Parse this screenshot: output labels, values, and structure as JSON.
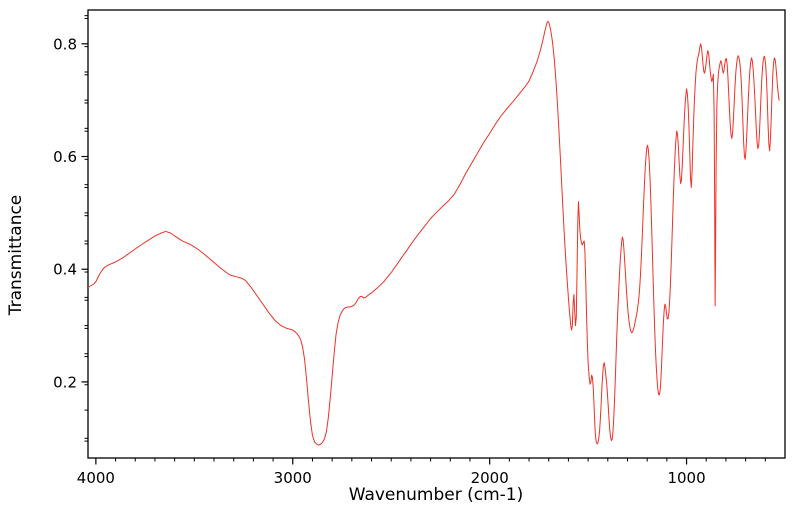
{
  "figure": {
    "background": "#ffffff",
    "axis_color": "#000000"
  },
  "chart_data": {
    "type": "line",
    "title": "",
    "xlabel": "Wavenumber (cm-1)",
    "ylabel": "Transmittance",
    "legend": null,
    "grid": false,
    "line_color": "#f03128",
    "line_width": 1,
    "xlim": [
      4040,
      500
    ],
    "ylim": [
      0.065,
      0.86
    ],
    "x_axis_reversed": true,
    "x_ticks_major": [
      4000,
      3000,
      2000,
      1000
    ],
    "x_tick_labels": [
      "4000",
      "3000",
      "2000",
      "1000"
    ],
    "x_minor_step": 100,
    "y_ticks_major": [
      0.2,
      0.4,
      0.6,
      0.8
    ],
    "y_tick_labels": [
      "0.2",
      "0.4",
      "0.6",
      "0.8"
    ],
    "y_minor_step": 0.05,
    "points": [
      [
        4038,
        0.368
      ],
      [
        4010,
        0.374
      ],
      [
        4000,
        0.378
      ],
      [
        3980,
        0.392
      ],
      [
        3960,
        0.402
      ],
      [
        3940,
        0.407
      ],
      [
        3900,
        0.413
      ],
      [
        3860,
        0.421
      ],
      [
        3820,
        0.431
      ],
      [
        3780,
        0.441
      ],
      [
        3740,
        0.45
      ],
      [
        3700,
        0.459
      ],
      [
        3670,
        0.464
      ],
      [
        3645,
        0.467
      ],
      [
        3620,
        0.464
      ],
      [
        3600,
        0.459
      ],
      [
        3560,
        0.45
      ],
      [
        3520,
        0.444
      ],
      [
        3480,
        0.435
      ],
      [
        3440,
        0.424
      ],
      [
        3400,
        0.412
      ],
      [
        3360,
        0.4
      ],
      [
        3320,
        0.39
      ],
      [
        3290,
        0.387
      ],
      [
        3260,
        0.384
      ],
      [
        3240,
        0.38
      ],
      [
        3210,
        0.367
      ],
      [
        3180,
        0.352
      ],
      [
        3150,
        0.337
      ],
      [
        3120,
        0.322
      ],
      [
        3090,
        0.309
      ],
      [
        3060,
        0.3
      ],
      [
        3030,
        0.295
      ],
      [
        3000,
        0.292
      ],
      [
        2985,
        0.288
      ],
      [
        2970,
        0.282
      ],
      [
        2960,
        0.275
      ],
      [
        2950,
        0.262
      ],
      [
        2940,
        0.24
      ],
      [
        2930,
        0.205
      ],
      [
        2920,
        0.165
      ],
      [
        2910,
        0.13
      ],
      [
        2900,
        0.105
      ],
      [
        2890,
        0.094
      ],
      [
        2880,
        0.09
      ],
      [
        2870,
        0.088
      ],
      [
        2860,
        0.089
      ],
      [
        2850,
        0.092
      ],
      [
        2840,
        0.098
      ],
      [
        2830,
        0.11
      ],
      [
        2820,
        0.135
      ],
      [
        2810,
        0.17
      ],
      [
        2800,
        0.21
      ],
      [
        2790,
        0.25
      ],
      [
        2780,
        0.285
      ],
      [
        2770,
        0.305
      ],
      [
        2760,
        0.318
      ],
      [
        2750,
        0.325
      ],
      [
        2740,
        0.33
      ],
      [
        2730,
        0.332
      ],
      [
        2720,
        0.333
      ],
      [
        2710,
        0.333
      ],
      [
        2700,
        0.334
      ],
      [
        2690,
        0.336
      ],
      [
        2680,
        0.34
      ],
      [
        2670,
        0.346
      ],
      [
        2660,
        0.351
      ],
      [
        2650,
        0.352
      ],
      [
        2640,
        0.349
      ],
      [
        2630,
        0.35
      ],
      [
        2620,
        0.353
      ],
      [
        2610,
        0.356
      ],
      [
        2600,
        0.358
      ],
      [
        2570,
        0.367
      ],
      [
        2540,
        0.377
      ],
      [
        2500,
        0.394
      ],
      [
        2460,
        0.414
      ],
      [
        2420,
        0.434
      ],
      [
        2380,
        0.454
      ],
      [
        2340,
        0.472
      ],
      [
        2300,
        0.49
      ],
      [
        2270,
        0.501
      ],
      [
        2240,
        0.511
      ],
      [
        2210,
        0.521
      ],
      [
        2180,
        0.533
      ],
      [
        2150,
        0.551
      ],
      [
        2120,
        0.571
      ],
      [
        2090,
        0.589
      ],
      [
        2060,
        0.607
      ],
      [
        2030,
        0.625
      ],
      [
        2000,
        0.641
      ],
      [
        1970,
        0.658
      ],
      [
        1940,
        0.673
      ],
      [
        1910,
        0.686
      ],
      [
        1880,
        0.698
      ],
      [
        1850,
        0.711
      ],
      [
        1820,
        0.724
      ],
      [
        1800,
        0.734
      ],
      [
        1780,
        0.75
      ],
      [
        1760,
        0.768
      ],
      [
        1745,
        0.785
      ],
      [
        1730,
        0.806
      ],
      [
        1718,
        0.825
      ],
      [
        1708,
        0.838
      ],
      [
        1704,
        0.84
      ],
      [
        1700,
        0.838
      ],
      [
        1694,
        0.831
      ],
      [
        1688,
        0.82
      ],
      [
        1682,
        0.806
      ],
      [
        1676,
        0.788
      ],
      [
        1670,
        0.765
      ],
      [
        1662,
        0.728
      ],
      [
        1654,
        0.683
      ],
      [
        1646,
        0.632
      ],
      [
        1638,
        0.578
      ],
      [
        1630,
        0.522
      ],
      [
        1622,
        0.468
      ],
      [
        1614,
        0.42
      ],
      [
        1606,
        0.378
      ],
      [
        1600,
        0.349
      ],
      [
        1594,
        0.322
      ],
      [
        1588,
        0.3
      ],
      [
        1584,
        0.292
      ],
      [
        1580,
        0.3
      ],
      [
        1576,
        0.34
      ],
      [
        1572,
        0.355
      ],
      [
        1568,
        0.325
      ],
      [
        1564,
        0.3
      ],
      [
        1560,
        0.315
      ],
      [
        1556,
        0.4
      ],
      [
        1552,
        0.49
      ],
      [
        1549,
        0.52
      ],
      [
        1546,
        0.5
      ],
      [
        1542,
        0.47
      ],
      [
        1538,
        0.455
      ],
      [
        1534,
        0.447
      ],
      [
        1530,
        0.443
      ],
      [
        1525,
        0.447
      ],
      [
        1520,
        0.45
      ],
      [
        1516,
        0.43
      ],
      [
        1512,
        0.38
      ],
      [
        1508,
        0.32
      ],
      [
        1504,
        0.27
      ],
      [
        1500,
        0.235
      ],
      [
        1495,
        0.21
      ],
      [
        1490,
        0.196
      ],
      [
        1486,
        0.2
      ],
      [
        1482,
        0.212
      ],
      [
        1478,
        0.208
      ],
      [
        1474,
        0.19
      ],
      [
        1470,
        0.16
      ],
      [
        1466,
        0.125
      ],
      [
        1462,
        0.102
      ],
      [
        1458,
        0.093
      ],
      [
        1454,
        0.09
      ],
      [
        1450,
        0.092
      ],
      [
        1446,
        0.1
      ],
      [
        1442,
        0.112
      ],
      [
        1438,
        0.133
      ],
      [
        1434,
        0.16
      ],
      [
        1430,
        0.19
      ],
      [
        1426,
        0.213
      ],
      [
        1422,
        0.23
      ],
      [
        1418,
        0.234
      ],
      [
        1414,
        0.225
      ],
      [
        1410,
        0.212
      ],
      [
        1406,
        0.198
      ],
      [
        1402,
        0.18
      ],
      [
        1398,
        0.158
      ],
      [
        1394,
        0.135
      ],
      [
        1390,
        0.115
      ],
      [
        1386,
        0.102
      ],
      [
        1382,
        0.096
      ],
      [
        1378,
        0.098
      ],
      [
        1374,
        0.11
      ],
      [
        1370,
        0.133
      ],
      [
        1366,
        0.165
      ],
      [
        1362,
        0.203
      ],
      [
        1358,
        0.245
      ],
      [
        1354,
        0.285
      ],
      [
        1350,
        0.32
      ],
      [
        1346,
        0.352
      ],
      [
        1342,
        0.382
      ],
      [
        1338,
        0.408
      ],
      [
        1334,
        0.43
      ],
      [
        1330,
        0.447
      ],
      [
        1326,
        0.457
      ],
      [
        1322,
        0.452
      ],
      [
        1318,
        0.435
      ],
      [
        1314,
        0.413
      ],
      [
        1310,
        0.39
      ],
      [
        1306,
        0.367
      ],
      [
        1302,
        0.346
      ],
      [
        1298,
        0.328
      ],
      [
        1294,
        0.313
      ],
      [
        1290,
        0.302
      ],
      [
        1286,
        0.294
      ],
      [
        1282,
        0.289
      ],
      [
        1278,
        0.287
      ],
      [
        1274,
        0.289
      ],
      [
        1270,
        0.293
      ],
      [
        1266,
        0.298
      ],
      [
        1262,
        0.305
      ],
      [
        1258,
        0.312
      ],
      [
        1254,
        0.319
      ],
      [
        1250,
        0.327
      ],
      [
        1246,
        0.337
      ],
      [
        1242,
        0.35
      ],
      [
        1238,
        0.367
      ],
      [
        1234,
        0.39
      ],
      [
        1230,
        0.418
      ],
      [
        1226,
        0.45
      ],
      [
        1222,
        0.484
      ],
      [
        1218,
        0.518
      ],
      [
        1214,
        0.55
      ],
      [
        1210,
        0.578
      ],
      [
        1206,
        0.6
      ],
      [
        1202,
        0.615
      ],
      [
        1198,
        0.62
      ],
      [
        1194,
        0.612
      ],
      [
        1190,
        0.594
      ],
      [
        1186,
        0.565
      ],
      [
        1182,
        0.527
      ],
      [
        1178,
        0.483
      ],
      [
        1174,
        0.435
      ],
      [
        1170,
        0.386
      ],
      [
        1166,
        0.338
      ],
      [
        1162,
        0.295
      ],
      [
        1158,
        0.258
      ],
      [
        1154,
        0.228
      ],
      [
        1150,
        0.205
      ],
      [
        1146,
        0.188
      ],
      [
        1142,
        0.178
      ],
      [
        1138,
        0.177
      ],
      [
        1134,
        0.186
      ],
      [
        1130,
        0.206
      ],
      [
        1126,
        0.237
      ],
      [
        1122,
        0.272
      ],
      [
        1118,
        0.303
      ],
      [
        1114,
        0.326
      ],
      [
        1110,
        0.338
      ],
      [
        1106,
        0.335
      ],
      [
        1102,
        0.322
      ],
      [
        1098,
        0.312
      ],
      [
        1094,
        0.312
      ],
      [
        1090,
        0.322
      ],
      [
        1086,
        0.342
      ],
      [
        1082,
        0.372
      ],
      [
        1078,
        0.41
      ],
      [
        1074,
        0.452
      ],
      [
        1070,
        0.496
      ],
      [
        1066,
        0.538
      ],
      [
        1062,
        0.576
      ],
      [
        1058,
        0.607
      ],
      [
        1054,
        0.63
      ],
      [
        1050,
        0.645
      ],
      [
        1046,
        0.64
      ],
      [
        1042,
        0.62
      ],
      [
        1038,
        0.592
      ],
      [
        1034,
        0.566
      ],
      [
        1030,
        0.552
      ],
      [
        1026,
        0.558
      ],
      [
        1022,
        0.582
      ],
      [
        1018,
        0.615
      ],
      [
        1014,
        0.648
      ],
      [
        1010,
        0.676
      ],
      [
        1006,
        0.7
      ],
      [
        1002,
        0.714
      ],
      [
        1000,
        0.72
      ],
      [
        996,
        0.712
      ],
      [
        992,
        0.69
      ],
      [
        988,
        0.655
      ],
      [
        984,
        0.61
      ],
      [
        980,
        0.562
      ],
      [
        976,
        0.545
      ],
      [
        972,
        0.572
      ],
      [
        968,
        0.62
      ],
      [
        964,
        0.664
      ],
      [
        960,
        0.7
      ],
      [
        956,
        0.728
      ],
      [
        952,
        0.75
      ],
      [
        948,
        0.764
      ],
      [
        944,
        0.773
      ],
      [
        940,
        0.779
      ],
      [
        936,
        0.786
      ],
      [
        932,
        0.795
      ],
      [
        928,
        0.8
      ],
      [
        924,
        0.793
      ],
      [
        920,
        0.778
      ],
      [
        916,
        0.762
      ],
      [
        912,
        0.75
      ],
      [
        908,
        0.748
      ],
      [
        904,
        0.756
      ],
      [
        900,
        0.768
      ],
      [
        896,
        0.78
      ],
      [
        892,
        0.788
      ],
      [
        888,
        0.783
      ],
      [
        884,
        0.768
      ],
      [
        880,
        0.752
      ],
      [
        876,
        0.74
      ],
      [
        872,
        0.733
      ],
      [
        868,
        0.737
      ],
      [
        864,
        0.746
      ],
      [
        860,
        0.68
      ],
      [
        857,
        0.5
      ],
      [
        855,
        0.335
      ],
      [
        853,
        0.42
      ],
      [
        850,
        0.58
      ],
      [
        846,
        0.69
      ],
      [
        842,
        0.728
      ],
      [
        838,
        0.748
      ],
      [
        834,
        0.758
      ],
      [
        830,
        0.765
      ],
      [
        826,
        0.77
      ],
      [
        822,
        0.766
      ],
      [
        818,
        0.755
      ],
      [
        814,
        0.748
      ],
      [
        810,
        0.752
      ],
      [
        806,
        0.764
      ],
      [
        802,
        0.772
      ],
      [
        798,
        0.774
      ],
      [
        794,
        0.764
      ],
      [
        790,
        0.742
      ],
      [
        786,
        0.712
      ],
      [
        782,
        0.682
      ],
      [
        778,
        0.656
      ],
      [
        774,
        0.638
      ],
      [
        770,
        0.632
      ],
      [
        766,
        0.642
      ],
      [
        762,
        0.666
      ],
      [
        758,
        0.696
      ],
      [
        754,
        0.724
      ],
      [
        750,
        0.748
      ],
      [
        746,
        0.764
      ],
      [
        742,
        0.774
      ],
      [
        738,
        0.779
      ],
      [
        734,
        0.776
      ],
      [
        730,
        0.768
      ],
      [
        726,
        0.754
      ],
      [
        722,
        0.732
      ],
      [
        718,
        0.7
      ],
      [
        714,
        0.662
      ],
      [
        710,
        0.625
      ],
      [
        706,
        0.6
      ],
      [
        702,
        0.595
      ],
      [
        698,
        0.612
      ],
      [
        694,
        0.64
      ],
      [
        690,
        0.672
      ],
      [
        686,
        0.704
      ],
      [
        682,
        0.732
      ],
      [
        678,
        0.754
      ],
      [
        674,
        0.768
      ],
      [
        670,
        0.775
      ],
      [
        666,
        0.77
      ],
      [
        662,
        0.756
      ],
      [
        658,
        0.736
      ],
      [
        654,
        0.71
      ],
      [
        650,
        0.68
      ],
      [
        646,
        0.65
      ],
      [
        642,
        0.626
      ],
      [
        638,
        0.614
      ],
      [
        634,
        0.618
      ],
      [
        630,
        0.64
      ],
      [
        626,
        0.672
      ],
      [
        622,
        0.706
      ],
      [
        618,
        0.736
      ],
      [
        614,
        0.758
      ],
      [
        610,
        0.772
      ],
      [
        606,
        0.778
      ],
      [
        602,
        0.774
      ],
      [
        598,
        0.762
      ],
      [
        594,
        0.738
      ],
      [
        590,
        0.7
      ],
      [
        586,
        0.655
      ],
      [
        582,
        0.622
      ],
      [
        578,
        0.61
      ],
      [
        574,
        0.63
      ],
      [
        570,
        0.668
      ],
      [
        566,
        0.71
      ],
      [
        562,
        0.745
      ],
      [
        558,
        0.766
      ],
      [
        554,
        0.775
      ],
      [
        550,
        0.772
      ],
      [
        546,
        0.76
      ],
      [
        542,
        0.742
      ],
      [
        538,
        0.724
      ],
      [
        534,
        0.71
      ],
      [
        530,
        0.7
      ]
    ]
  }
}
